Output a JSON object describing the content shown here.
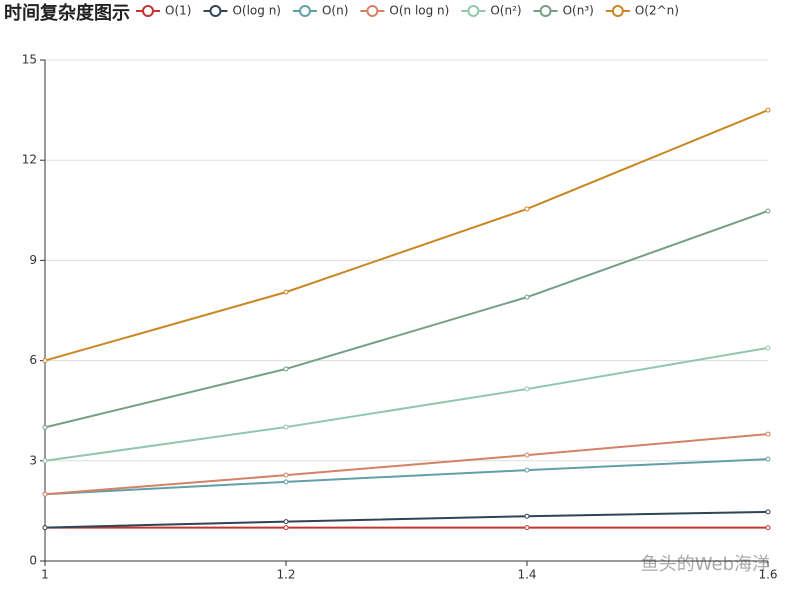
{
  "chart_data": {
    "type": "line",
    "title": "时间复杂度图示",
    "categories": [
      "1",
      "1.2",
      "1.4",
      "1.6"
    ],
    "series": [
      {
        "name": "O(1)",
        "color": "#c23531",
        "values": [
          1,
          1,
          1,
          1
        ]
      },
      {
        "name": "O(log n)",
        "color": "#2f4554",
        "values": [
          1,
          1.18,
          1.34,
          1.47
        ]
      },
      {
        "name": "O(n)",
        "color": "#61a0a8",
        "values": [
          2,
          2.37,
          2.72,
          3.05
        ]
      },
      {
        "name": "O(n log n)",
        "color": "#d48265",
        "values": [
          2,
          2.57,
          3.17,
          3.8
        ]
      },
      {
        "name": "O(n²)",
        "color": "#91c7ae",
        "values": [
          3,
          4.01,
          5.15,
          6.38
        ]
      },
      {
        "name": "O(n³)",
        "color": "#749f83",
        "values": [
          4,
          5.75,
          7.9,
          10.48
        ]
      },
      {
        "name": "O(2^n)",
        "color": "#ca8622",
        "values": [
          6,
          8.05,
          10.54,
          13.5
        ]
      }
    ],
    "ylim": [
      0,
      15
    ],
    "yticks": [
      0,
      3,
      6,
      9,
      12,
      15
    ],
    "grid": true,
    "watermark": "鱼头的Web海洋"
  }
}
